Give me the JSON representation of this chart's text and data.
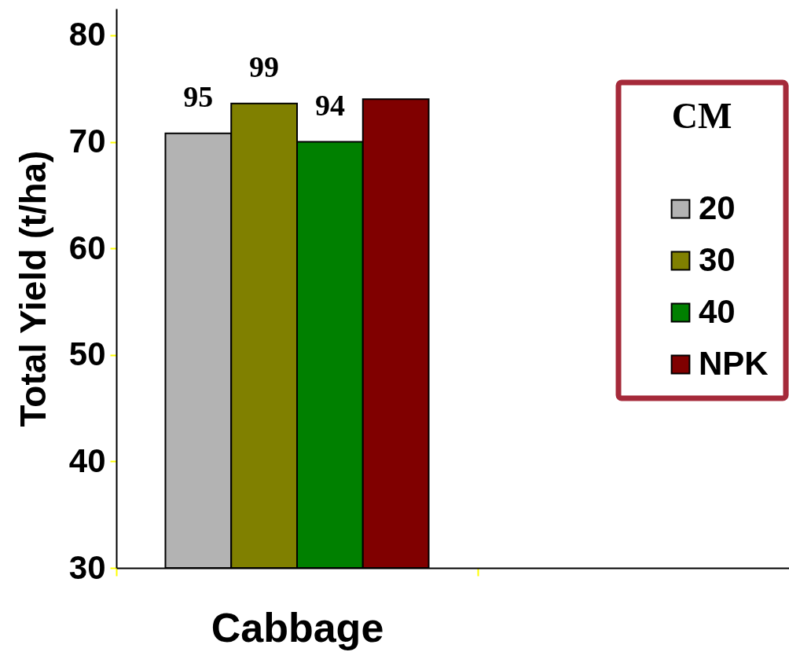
{
  "chart_data": {
    "type": "bar",
    "ylabel": "Total Yield (t/ha)",
    "legend_title": "CM",
    "categories": [
      "Cabbage"
    ],
    "series": [
      {
        "name": "20",
        "color": "#b3b3b3",
        "values": [
          70.8
        ]
      },
      {
        "name": "30",
        "color": "#808000",
        "values": [
          73.6
        ]
      },
      {
        "name": "40",
        "color": "#008000",
        "values": [
          70.0
        ]
      },
      {
        "name": "NPK",
        "color": "#800000",
        "values": [
          74.0
        ]
      }
    ],
    "annotations": [
      {
        "text": "95",
        "x": "Cabbage",
        "y": 70.8
      },
      {
        "text": "99",
        "x": "Cabbage",
        "y": 73.6
      },
      {
        "text": "94",
        "x": "Cabbage",
        "y": 70.0
      }
    ],
    "ylim": [
      30,
      82.5
    ],
    "yticks": [
      30,
      40,
      50,
      60,
      70,
      80
    ],
    "grid": false,
    "legend": "right"
  }
}
